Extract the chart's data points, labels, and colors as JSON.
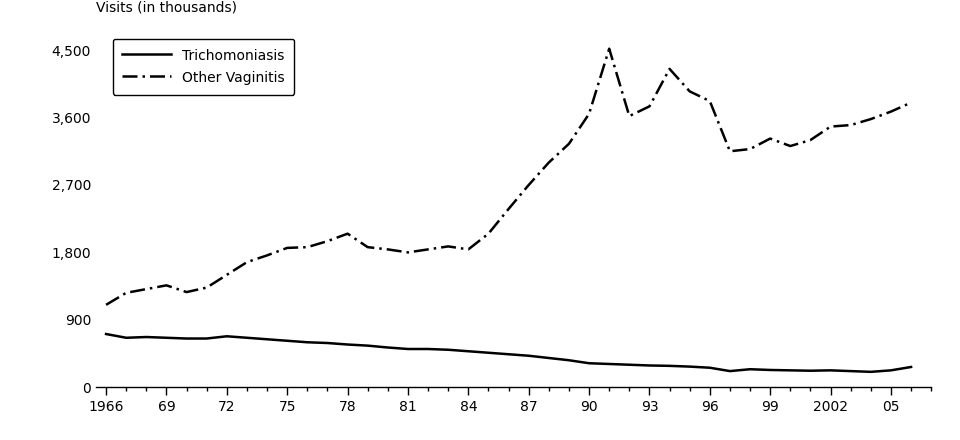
{
  "years": [
    1966,
    1967,
    1968,
    1969,
    1970,
    1971,
    1972,
    1973,
    1974,
    1975,
    1976,
    1977,
    1978,
    1979,
    1980,
    1981,
    1982,
    1983,
    1984,
    1985,
    1986,
    1987,
    1988,
    1989,
    1990,
    1991,
    1992,
    1993,
    1994,
    1995,
    1996,
    1997,
    1998,
    1999,
    2000,
    2001,
    2002,
    2003,
    2004,
    2005,
    2006
  ],
  "trichomoniasis": [
    710,
    660,
    670,
    660,
    650,
    650,
    680,
    660,
    640,
    620,
    600,
    590,
    570,
    555,
    530,
    510,
    510,
    500,
    480,
    460,
    440,
    420,
    390,
    360,
    320,
    310,
    300,
    290,
    285,
    275,
    260,
    215,
    240,
    230,
    225,
    220,
    225,
    215,
    205,
    225,
    270
  ],
  "other_vaginitis": [
    1100,
    1260,
    1310,
    1360,
    1270,
    1330,
    1500,
    1670,
    1760,
    1860,
    1870,
    1950,
    2050,
    1870,
    1840,
    1800,
    1840,
    1880,
    1840,
    2050,
    2380,
    2700,
    3000,
    3250,
    3650,
    4520,
    3620,
    3750,
    4250,
    3950,
    3820,
    3150,
    3180,
    3320,
    3220,
    3300,
    3480,
    3500,
    3580,
    3680,
    3800
  ],
  "ylabel": "Visits (in thousands)",
  "yticks": [
    0,
    900,
    1800,
    2700,
    3600,
    4500
  ],
  "ytick_labels": [
    "0",
    "900",
    "1,800",
    "2,700",
    "3,600",
    "4,500"
  ],
  "xtick_labels": [
    "1966",
    "69",
    "72",
    "75",
    "78",
    "81",
    "84",
    "87",
    "90",
    "93",
    "96",
    "99",
    "2002",
    "05"
  ],
  "xtick_years": [
    1966,
    1969,
    1972,
    1975,
    1978,
    1981,
    1984,
    1987,
    1990,
    1993,
    1996,
    1999,
    2002,
    2005
  ],
  "line_color": "#000000",
  "background_color": "#ffffff",
  "legend_trichomoniasis": "Trichomoniasis",
  "legend_other": "Other Vaginitis",
  "xlim_min": 1965.5,
  "xlim_max": 2007.0,
  "ylim": [
    0,
    4700
  ]
}
